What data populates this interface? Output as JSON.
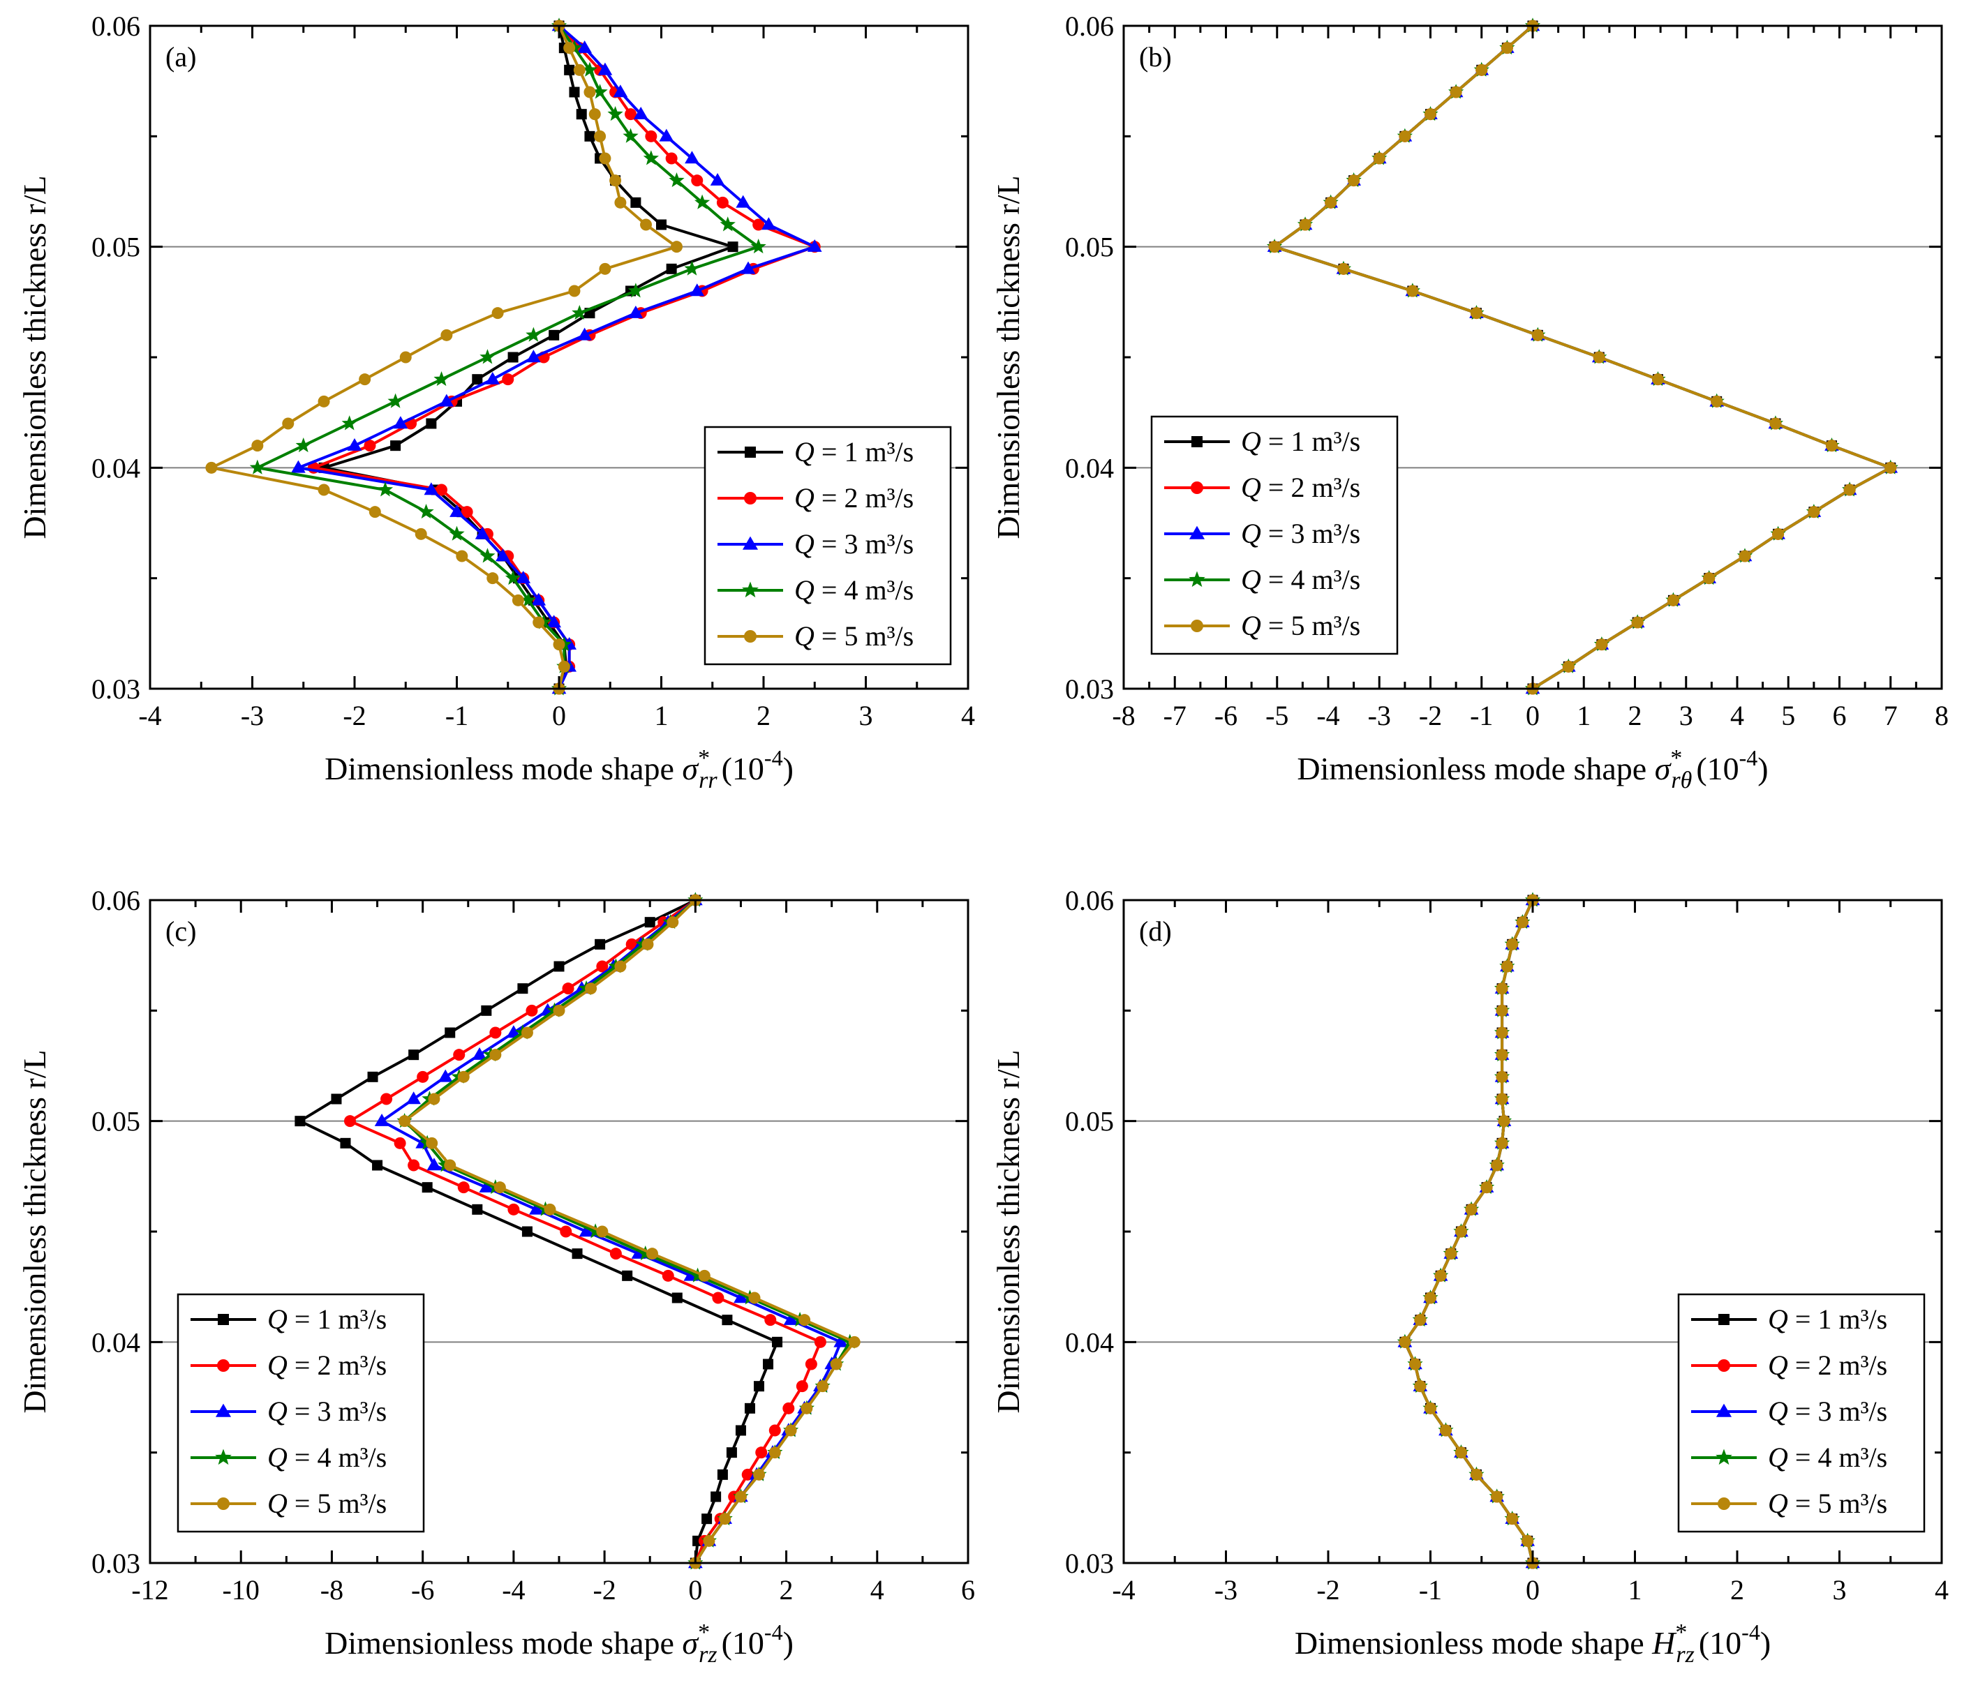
{
  "colors": {
    "Q1": "#000000",
    "Q2": "#ff0000",
    "Q3": "#0000ff",
    "Q4": "#008000",
    "Q5": "#b8860b",
    "refline": "#808080"
  },
  "legend": {
    "q_symbol": "Q",
    "units": "m³/s",
    "entries": [
      {
        "q": "1",
        "marker": "square",
        "color": "#000000"
      },
      {
        "q": "2",
        "marker": "circle",
        "color": "#ff0000"
      },
      {
        "q": "3",
        "marker": "triangle",
        "color": "#0000ff"
      },
      {
        "q": "4",
        "marker": "star",
        "color": "#008000"
      },
      {
        "q": "5",
        "marker": "circle",
        "color": "#b8860b"
      }
    ]
  },
  "chart_data": [
    {
      "type": "line",
      "panel_label": "(a)",
      "xlabel_prefix": "Dimensionless mode shape ",
      "xlabel_symbol": "σ",
      "xlabel_sub": "rr",
      "xlabel_sup": "*",
      "xlabel_unit": "(10",
      "xlabel_unit_exp": "-4",
      "xlabel_unit_close": ")",
      "ylabel": "Dimensionless thickness r/L",
      "xlim": [
        -4,
        4
      ],
      "ylim": [
        0.03,
        0.06
      ],
      "xticks": [
        "-4",
        "-3",
        "-2",
        "-1",
        "0",
        "1",
        "2",
        "3",
        "4"
      ],
      "yticks": [
        "0.03",
        "0.04",
        "0.05",
        "0.06"
      ],
      "reference_lines_y": [
        0.04,
        0.05
      ],
      "legend_position": "middle-right",
      "y": [
        0.03,
        0.031,
        0.032,
        0.033,
        0.034,
        0.035,
        0.036,
        0.037,
        0.038,
        0.039,
        0.04,
        0.041,
        0.042,
        0.043,
        0.044,
        0.045,
        0.046,
        0.047,
        0.048,
        0.049,
        0.05,
        0.051,
        0.052,
        0.053,
        0.054,
        0.055,
        0.056,
        0.057,
        0.058,
        0.059,
        0.06
      ],
      "series": [
        {
          "name": "Q = 1 m³/s",
          "values": [
            0.0,
            0.07,
            0.05,
            -0.1,
            -0.25,
            -0.4,
            -0.55,
            -0.75,
            -0.95,
            -1.2,
            -2.3,
            -1.6,
            -1.25,
            -1.0,
            -0.8,
            -0.45,
            -0.05,
            0.3,
            0.7,
            1.1,
            1.7,
            1.0,
            0.75,
            0.55,
            0.4,
            0.3,
            0.22,
            0.15,
            0.1,
            0.05,
            0.0
          ]
        },
        {
          "name": "Q = 2 m³/s",
          "values": [
            0.0,
            0.1,
            0.1,
            -0.05,
            -0.2,
            -0.35,
            -0.5,
            -0.7,
            -0.9,
            -1.15,
            -2.4,
            -1.85,
            -1.45,
            -1.05,
            -0.5,
            -0.15,
            0.3,
            0.8,
            1.4,
            1.9,
            2.5,
            1.95,
            1.6,
            1.35,
            1.1,
            0.9,
            0.7,
            0.55,
            0.4,
            0.2,
            0.0
          ]
        },
        {
          "name": "Q = 3 m³/s",
          "values": [
            0.0,
            0.1,
            0.1,
            -0.05,
            -0.2,
            -0.35,
            -0.55,
            -0.75,
            -1.0,
            -1.25,
            -2.55,
            -2.0,
            -1.55,
            -1.1,
            -0.65,
            -0.25,
            0.25,
            0.75,
            1.35,
            1.85,
            2.5,
            2.05,
            1.8,
            1.55,
            1.3,
            1.05,
            0.8,
            0.6,
            0.45,
            0.25,
            0.0
          ]
        },
        {
          "name": "Q = 4 m³/s",
          "values": [
            0.0,
            0.05,
            0.05,
            -0.15,
            -0.3,
            -0.45,
            -0.7,
            -1.0,
            -1.3,
            -1.7,
            -2.95,
            -2.5,
            -2.05,
            -1.6,
            -1.15,
            -0.7,
            -0.25,
            0.2,
            0.75,
            1.3,
            1.95,
            1.65,
            1.4,
            1.15,
            0.9,
            0.7,
            0.55,
            0.4,
            0.3,
            0.15,
            0.0
          ]
        },
        {
          "name": "Q = 5 m³/s",
          "values": [
            0.0,
            0.05,
            0.0,
            -0.2,
            -0.4,
            -0.65,
            -0.95,
            -1.35,
            -1.8,
            -2.3,
            -3.4,
            -2.95,
            -2.65,
            -2.3,
            -1.9,
            -1.5,
            -1.1,
            -0.6,
            0.15,
            0.45,
            1.15,
            0.85,
            0.6,
            0.55,
            0.45,
            0.4,
            0.35,
            0.3,
            0.2,
            0.1,
            0.0
          ]
        }
      ]
    },
    {
      "type": "line",
      "panel_label": "(b)",
      "xlabel_prefix": "Dimensionless mode shape ",
      "xlabel_symbol": "σ",
      "xlabel_sub": "rθ",
      "xlabel_sup": "*",
      "xlabel_unit": "(10",
      "xlabel_unit_exp": "-4",
      "xlabel_unit_close": ")",
      "ylabel": "Dimensionless thickness r/L",
      "xlim": [
        -8,
        8
      ],
      "ylim": [
        0.03,
        0.06
      ],
      "xticks": [
        "-8",
        "-7",
        "-6",
        "-5",
        "-4",
        "-3",
        "-2",
        "-1",
        "0",
        "1",
        "2",
        "3",
        "4",
        "5",
        "6",
        "7",
        "8"
      ],
      "yticks": [
        "0.03",
        "0.04",
        "0.05",
        "0.06"
      ],
      "reference_lines_y": [
        0.04,
        0.05
      ],
      "legend_position": "middle-left",
      "y": [
        0.03,
        0.031,
        0.032,
        0.033,
        0.034,
        0.035,
        0.036,
        0.037,
        0.038,
        0.039,
        0.04,
        0.041,
        0.042,
        0.043,
        0.044,
        0.045,
        0.046,
        0.047,
        0.048,
        0.049,
        0.05,
        0.051,
        0.052,
        0.053,
        0.054,
        0.055,
        0.056,
        0.057,
        0.058,
        0.059,
        0.06
      ],
      "series": [
        {
          "name": "Q = 1 m³/s",
          "values": [
            0.0,
            0.7,
            1.35,
            2.05,
            2.75,
            3.45,
            4.15,
            4.8,
            5.5,
            6.2,
            7.0,
            5.85,
            4.75,
            3.6,
            2.45,
            1.3,
            0.1,
            -1.1,
            -2.35,
            -3.7,
            -5.05,
            -4.45,
            -3.95,
            -3.5,
            -3.0,
            -2.5,
            -2.0,
            -1.5,
            -1.0,
            -0.5,
            0.0
          ]
        },
        {
          "name": "Q = 2 m³/s",
          "values": [
            0.0,
            0.7,
            1.35,
            2.05,
            2.75,
            3.45,
            4.15,
            4.8,
            5.5,
            6.2,
            7.0,
            5.85,
            4.75,
            3.6,
            2.45,
            1.3,
            0.1,
            -1.1,
            -2.35,
            -3.7,
            -5.05,
            -4.45,
            -3.95,
            -3.5,
            -3.0,
            -2.5,
            -2.0,
            -1.5,
            -1.0,
            -0.5,
            0.0
          ]
        },
        {
          "name": "Q = 3 m³/s",
          "values": [
            0.0,
            0.7,
            1.35,
            2.05,
            2.75,
            3.45,
            4.15,
            4.8,
            5.5,
            6.2,
            7.0,
            5.85,
            4.75,
            3.6,
            2.45,
            1.3,
            0.1,
            -1.1,
            -2.35,
            -3.7,
            -5.05,
            -4.45,
            -3.95,
            -3.5,
            -3.0,
            -2.5,
            -2.0,
            -1.5,
            -1.0,
            -0.5,
            0.0
          ]
        },
        {
          "name": "Q = 4 m³/s",
          "values": [
            0.0,
            0.7,
            1.35,
            2.05,
            2.75,
            3.45,
            4.15,
            4.8,
            5.5,
            6.2,
            7.0,
            5.85,
            4.75,
            3.6,
            2.45,
            1.3,
            0.1,
            -1.1,
            -2.35,
            -3.7,
            -5.05,
            -4.45,
            -3.95,
            -3.5,
            -3.0,
            -2.5,
            -2.0,
            -1.5,
            -1.0,
            -0.5,
            0.0
          ]
        },
        {
          "name": "Q = 5 m³/s",
          "values": [
            0.0,
            0.7,
            1.35,
            2.05,
            2.75,
            3.45,
            4.15,
            4.8,
            5.5,
            6.2,
            7.0,
            5.85,
            4.75,
            3.6,
            2.45,
            1.3,
            0.1,
            -1.1,
            -2.35,
            -3.7,
            -5.05,
            -4.45,
            -3.95,
            -3.5,
            -3.0,
            -2.5,
            -2.0,
            -1.5,
            -1.0,
            -0.5,
            0.0
          ]
        }
      ]
    },
    {
      "type": "line",
      "panel_label": "(c)",
      "xlabel_prefix": "Dimensionless mode shape ",
      "xlabel_symbol": "σ",
      "xlabel_sub": "rz",
      "xlabel_sup": "*",
      "xlabel_unit": "(10",
      "xlabel_unit_exp": "-4",
      "xlabel_unit_close": ")",
      "ylabel": "Dimensionless thickness r/L",
      "xlim": [
        -12,
        6
      ],
      "ylim": [
        0.03,
        0.06
      ],
      "xticks": [
        "-12",
        "-10",
        "-8",
        "-6",
        "-4",
        "-2",
        "0",
        "2",
        "4",
        "6"
      ],
      "yticks": [
        "0.03",
        "0.04",
        "0.05",
        "0.06"
      ],
      "reference_lines_y": [
        0.04,
        0.05
      ],
      "legend_position": "bottom-left",
      "y": [
        0.03,
        0.031,
        0.032,
        0.033,
        0.034,
        0.035,
        0.036,
        0.037,
        0.038,
        0.039,
        0.04,
        0.041,
        0.042,
        0.043,
        0.044,
        0.045,
        0.046,
        0.047,
        0.048,
        0.049,
        0.05,
        0.051,
        0.052,
        0.053,
        0.054,
        0.055,
        0.056,
        0.057,
        0.058,
        0.059,
        0.06
      ],
      "series": [
        {
          "name": "Q = 1 m³/s",
          "values": [
            0.0,
            0.05,
            0.25,
            0.45,
            0.6,
            0.8,
            1.0,
            1.2,
            1.4,
            1.6,
            1.8,
            0.7,
            -0.4,
            -1.5,
            -2.6,
            -3.7,
            -4.8,
            -5.9,
            -7.0,
            -7.7,
            -8.7,
            -7.9,
            -7.1,
            -6.2,
            -5.4,
            -4.6,
            -3.8,
            -3.0,
            -2.1,
            -1.0,
            0.0
          ]
        },
        {
          "name": "Q = 2 m³/s",
          "values": [
            0.0,
            0.2,
            0.55,
            0.85,
            1.15,
            1.45,
            1.75,
            2.05,
            2.35,
            2.55,
            2.75,
            1.65,
            0.5,
            -0.6,
            -1.75,
            -2.85,
            -4.0,
            -5.1,
            -6.2,
            -6.5,
            -7.6,
            -6.8,
            -6.0,
            -5.2,
            -4.4,
            -3.6,
            -2.8,
            -2.05,
            -1.4,
            -0.7,
            0.0
          ]
        },
        {
          "name": "Q = 3 m³/s",
          "values": [
            0.0,
            0.3,
            0.65,
            1.0,
            1.35,
            1.7,
            2.05,
            2.4,
            2.75,
            3.0,
            3.2,
            2.1,
            1.0,
            -0.1,
            -1.25,
            -2.4,
            -3.5,
            -4.6,
            -5.75,
            -6.0,
            -6.9,
            -6.2,
            -5.5,
            -4.75,
            -4.0,
            -3.25,
            -2.5,
            -1.8,
            -1.2,
            -0.6,
            0.0
          ]
        },
        {
          "name": "Q = 4 m³/s",
          "values": [
            0.0,
            0.3,
            0.65,
            1.0,
            1.4,
            1.75,
            2.1,
            2.45,
            2.8,
            3.1,
            3.4,
            2.3,
            1.2,
            0.05,
            -1.1,
            -2.2,
            -3.3,
            -4.4,
            -5.5,
            -5.9,
            -6.4,
            -5.85,
            -5.2,
            -4.5,
            -3.8,
            -3.1,
            -2.4,
            -1.75,
            -1.15,
            -0.55,
            0.0
          ]
        },
        {
          "name": "Q = 5 m³/s",
          "values": [
            0.0,
            0.3,
            0.65,
            1.0,
            1.4,
            1.75,
            2.1,
            2.45,
            2.8,
            3.1,
            3.5,
            2.4,
            1.3,
            0.2,
            -0.95,
            -2.05,
            -3.2,
            -4.3,
            -5.4,
            -5.8,
            -6.4,
            -5.75,
            -5.1,
            -4.4,
            -3.7,
            -3.0,
            -2.3,
            -1.65,
            -1.05,
            -0.5,
            0.0
          ]
        }
      ]
    },
    {
      "type": "line",
      "panel_label": "(d)",
      "xlabel_prefix": "Dimensionless mode shape ",
      "xlabel_symbol": "H",
      "xlabel_sub": "rz",
      "xlabel_sup": "*",
      "xlabel_unit": "(10",
      "xlabel_unit_exp": "-4",
      "xlabel_unit_close": ")",
      "ylabel": "Dimensionless thickness r/L",
      "xlim": [
        -4,
        4
      ],
      "ylim": [
        0.03,
        0.06
      ],
      "xticks": [
        "-4",
        "-3",
        "-2",
        "-1",
        "0",
        "1",
        "2",
        "3",
        "4"
      ],
      "yticks": [
        "0.03",
        "0.04",
        "0.05",
        "0.06"
      ],
      "reference_lines_y": [
        0.04,
        0.05
      ],
      "legend_position": "bottom-right",
      "y": [
        0.03,
        0.031,
        0.032,
        0.033,
        0.034,
        0.035,
        0.036,
        0.037,
        0.038,
        0.039,
        0.04,
        0.041,
        0.042,
        0.043,
        0.044,
        0.045,
        0.046,
        0.047,
        0.048,
        0.049,
        0.05,
        0.051,
        0.052,
        0.053,
        0.054,
        0.055,
        0.056,
        0.057,
        0.058,
        0.059,
        0.06
      ],
      "series": [
        {
          "name": "Q = 1 m³/s",
          "values": [
            0.0,
            -0.05,
            -0.2,
            -0.35,
            -0.55,
            -0.7,
            -0.85,
            -1.0,
            -1.1,
            -1.15,
            -1.25,
            -1.1,
            -1.0,
            -0.9,
            -0.8,
            -0.7,
            -0.6,
            -0.45,
            -0.35,
            -0.3,
            -0.28,
            -0.3,
            -0.3,
            -0.3,
            -0.3,
            -0.3,
            -0.3,
            -0.25,
            -0.2,
            -0.1,
            0.0
          ]
        },
        {
          "name": "Q = 2 m³/s",
          "values": [
            0.0,
            -0.05,
            -0.2,
            -0.35,
            -0.55,
            -0.7,
            -0.85,
            -1.0,
            -1.1,
            -1.15,
            -1.25,
            -1.1,
            -1.0,
            -0.9,
            -0.8,
            -0.7,
            -0.6,
            -0.45,
            -0.35,
            -0.3,
            -0.28,
            -0.3,
            -0.3,
            -0.3,
            -0.3,
            -0.3,
            -0.3,
            -0.25,
            -0.2,
            -0.1,
            0.0
          ]
        },
        {
          "name": "Q = 3 m³/s",
          "values": [
            0.0,
            -0.05,
            -0.2,
            -0.35,
            -0.55,
            -0.7,
            -0.85,
            -1.0,
            -1.1,
            -1.15,
            -1.25,
            -1.1,
            -1.0,
            -0.9,
            -0.8,
            -0.7,
            -0.6,
            -0.45,
            -0.35,
            -0.3,
            -0.28,
            -0.3,
            -0.3,
            -0.3,
            -0.3,
            -0.3,
            -0.3,
            -0.25,
            -0.2,
            -0.1,
            0.0
          ]
        },
        {
          "name": "Q = 4 m³/s",
          "values": [
            0.0,
            -0.05,
            -0.2,
            -0.35,
            -0.55,
            -0.7,
            -0.85,
            -1.0,
            -1.1,
            -1.15,
            -1.25,
            -1.1,
            -1.0,
            -0.9,
            -0.8,
            -0.7,
            -0.6,
            -0.45,
            -0.35,
            -0.3,
            -0.28,
            -0.3,
            -0.3,
            -0.3,
            -0.3,
            -0.3,
            -0.3,
            -0.25,
            -0.2,
            -0.1,
            0.0
          ]
        },
        {
          "name": "Q = 5 m³/s",
          "values": [
            0.0,
            -0.05,
            -0.2,
            -0.35,
            -0.55,
            -0.7,
            -0.85,
            -1.0,
            -1.1,
            -1.15,
            -1.25,
            -1.1,
            -1.0,
            -0.9,
            -0.8,
            -0.7,
            -0.6,
            -0.45,
            -0.35,
            -0.3,
            -0.28,
            -0.3,
            -0.3,
            -0.3,
            -0.3,
            -0.3,
            -0.3,
            -0.25,
            -0.2,
            -0.1,
            0.0
          ]
        }
      ]
    }
  ]
}
